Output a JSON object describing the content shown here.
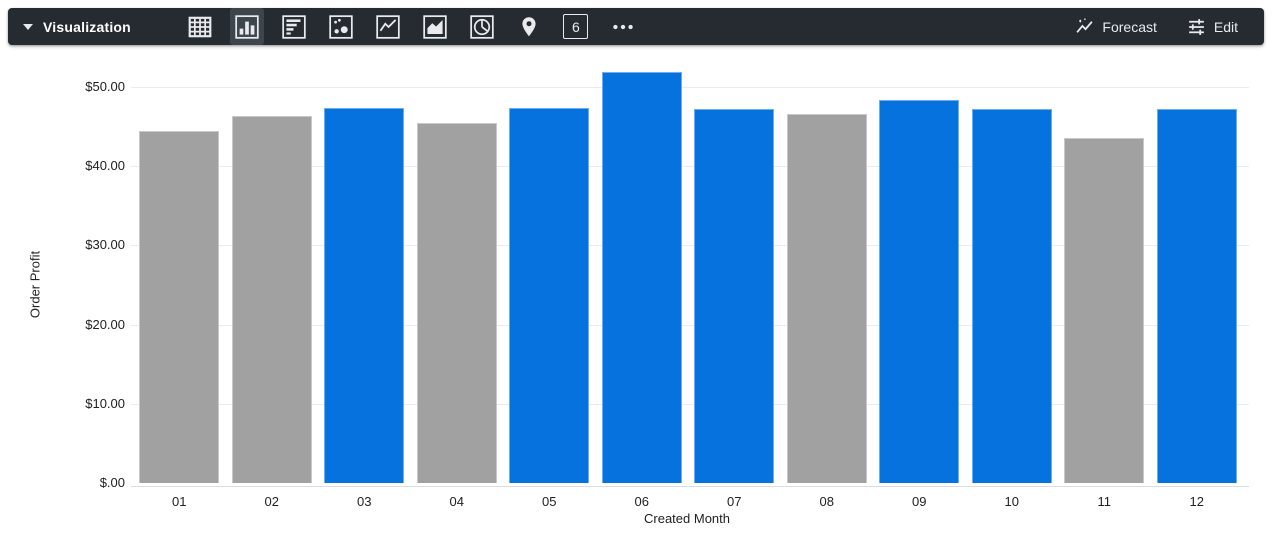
{
  "toolbar": {
    "title": "Visualization",
    "forecast_label": "Forecast",
    "edit_label": "Edit",
    "single_value_glyph": "6",
    "chart_types": [
      {
        "name": "table",
        "selected": false
      },
      {
        "name": "column",
        "selected": true
      },
      {
        "name": "bar",
        "selected": false
      },
      {
        "name": "scatterplot",
        "selected": false
      },
      {
        "name": "line",
        "selected": false
      },
      {
        "name": "area",
        "selected": false
      },
      {
        "name": "pie",
        "selected": false
      },
      {
        "name": "map",
        "selected": false
      },
      {
        "name": "single-value",
        "selected": false
      },
      {
        "name": "more",
        "selected": false
      }
    ]
  },
  "chart_data": {
    "type": "bar",
    "title": "",
    "xlabel": "Created Month",
    "ylabel": "Order Profit",
    "categories": [
      "01",
      "02",
      "03",
      "04",
      "05",
      "06",
      "07",
      "08",
      "09",
      "10",
      "11",
      "12"
    ],
    "series": [
      {
        "name": "Order Profit",
        "values": [
          44.5,
          46.3,
          47.4,
          45.5,
          47.4,
          51.9,
          47.2,
          46.6,
          48.4,
          47.2,
          43.6,
          47.2
        ]
      }
    ],
    "bar_highlighted": [
      false,
      false,
      true,
      false,
      true,
      true,
      true,
      false,
      true,
      true,
      false,
      true
    ],
    "y_ticks": [
      {
        "value": 0,
        "label": "$.00"
      },
      {
        "value": 10,
        "label": "$10.00"
      },
      {
        "value": 20,
        "label": "$20.00"
      },
      {
        "value": 30,
        "label": "$30.00"
      },
      {
        "value": 40,
        "label": "$40.00"
      },
      {
        "value": 50,
        "label": "$50.00"
      }
    ],
    "ylim": [
      0,
      55
    ],
    "grid": true,
    "legend": false,
    "colors": {
      "highlight": "#0672DE",
      "muted": "#A1A1A1"
    }
  }
}
